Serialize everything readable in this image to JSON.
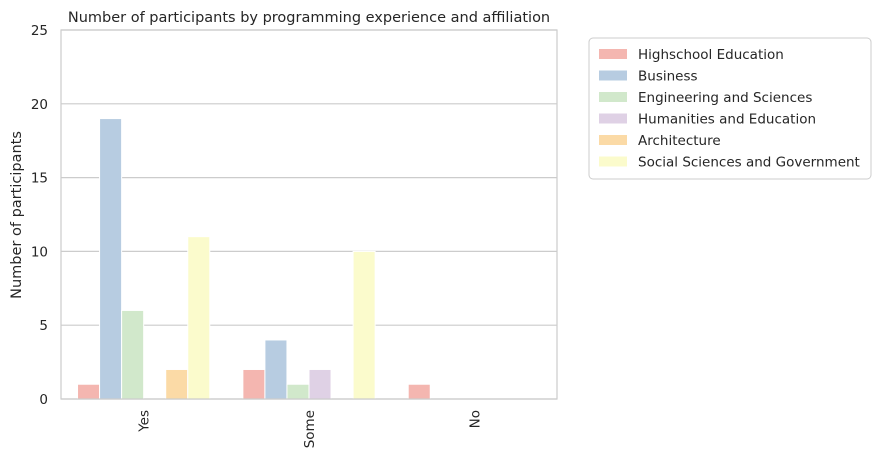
{
  "chart_data": {
    "type": "bar",
    "title": "Number of participants by programming experience and affiliation",
    "xlabel": "",
    "ylabel": "Number of participants",
    "categories": [
      "Yes",
      "Some",
      "No"
    ],
    "ylim": [
      0,
      25
    ],
    "yticks": [
      "0",
      "5",
      "10",
      "15",
      "20",
      "25"
    ],
    "grid": "horizontal",
    "legend_position": "outside-right",
    "series": [
      {
        "name": "Highschool Education",
        "color": "#f4b6b0",
        "values": [
          1,
          2,
          1
        ]
      },
      {
        "name": "Business",
        "color": "#b7cce1",
        "values": [
          19,
          4,
          0
        ]
      },
      {
        "name": "Engineering and Sciences",
        "color": "#d1e8cb",
        "values": [
          6,
          1,
          0
        ]
      },
      {
        "name": "Humanities and Education",
        "color": "#dfd1e5",
        "values": [
          0,
          2,
          0
        ]
      },
      {
        "name": "Architecture",
        "color": "#fbdaa6",
        "values": [
          2,
          0,
          0
        ]
      },
      {
        "name": "Social Sciences and Government",
        "color": "#fbfbcc",
        "values": [
          11,
          10,
          0
        ]
      }
    ]
  }
}
